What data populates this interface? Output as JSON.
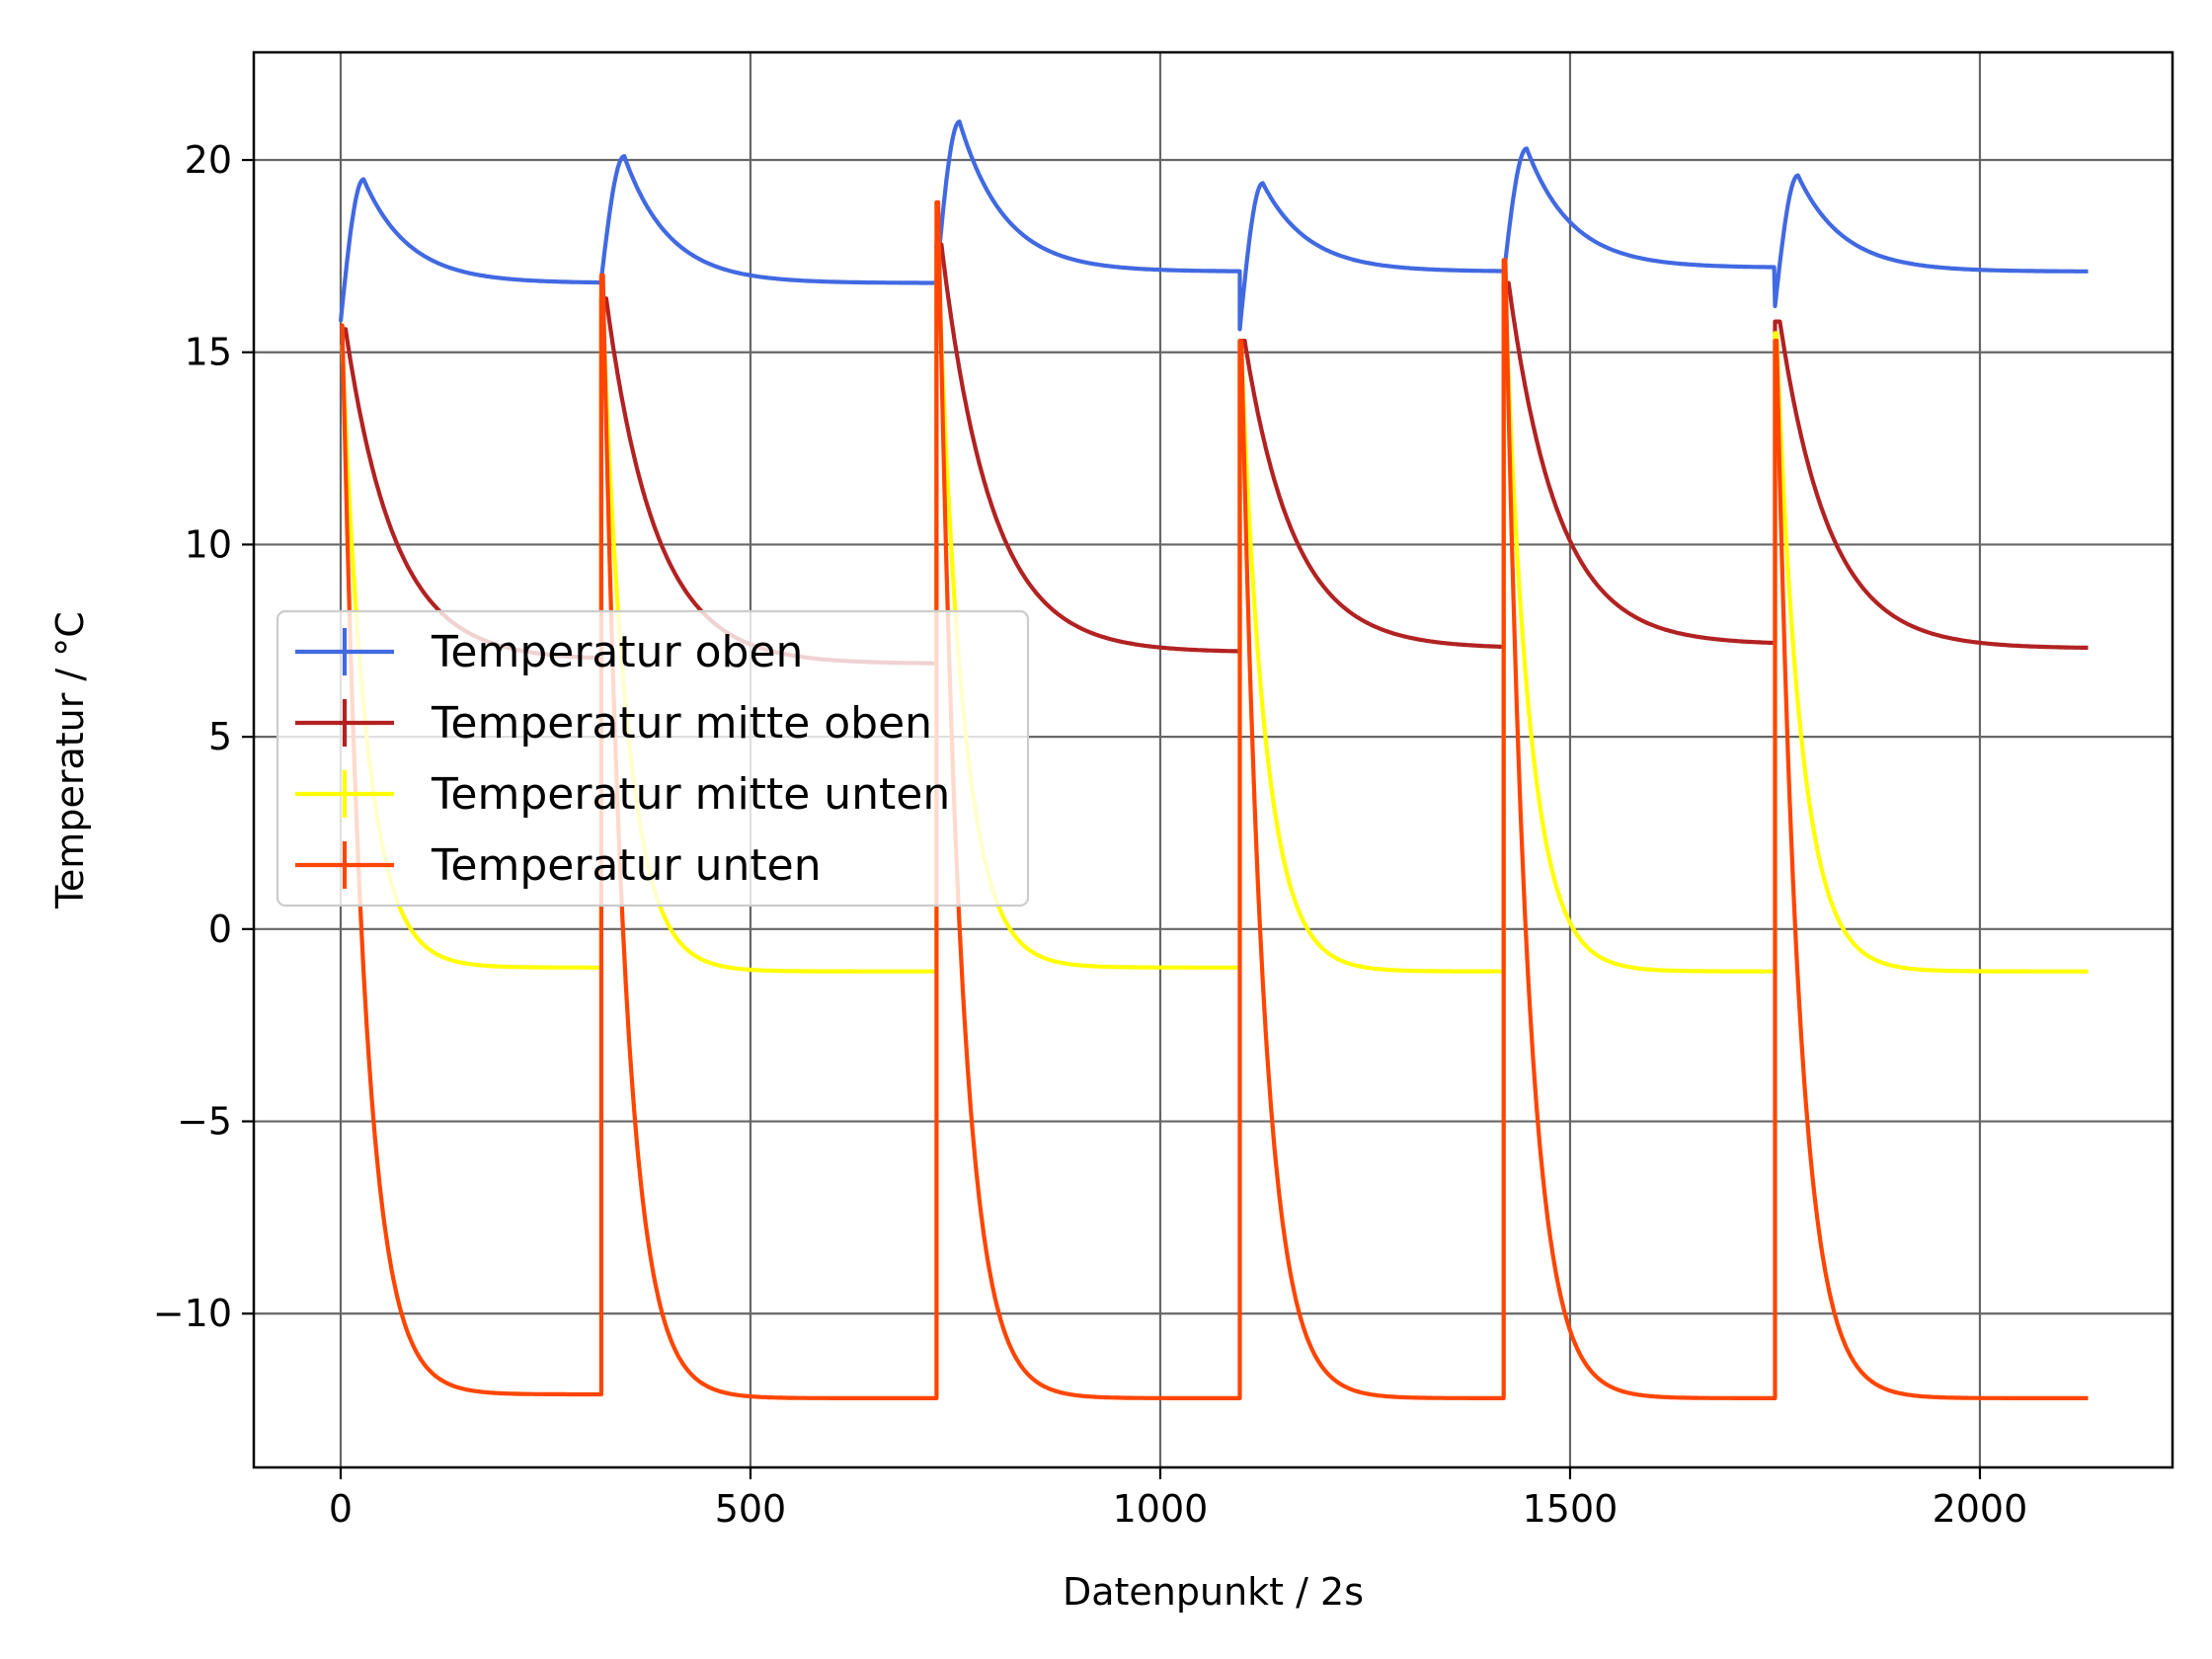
{
  "chart_data": {
    "type": "line",
    "xlabel": "Datenpunkt / 2s",
    "ylabel": "Temperatur / °C",
    "xlim": [
      -106,
      2235
    ],
    "ylim": [
      -14,
      22.8
    ],
    "xticks": [
      0,
      500,
      1000,
      1500,
      2000
    ],
    "xtick_labels": [
      "0",
      "500",
      "1000",
      "1500",
      "2000"
    ],
    "yticks": [
      -10,
      -5,
      0,
      5,
      10,
      15,
      20
    ],
    "ytick_labels": [
      "−10",
      "−5",
      "0",
      "5",
      "10",
      "15",
      "20"
    ],
    "grid": true,
    "legend_position": "center-left",
    "x_max": 2133,
    "segments": [
      0,
      318,
      727,
      1097,
      1419,
      1750
    ],
    "series": [
      {
        "name": "Temperatur oben",
        "color": "#4169e1",
        "cycles": [
          {
            "start": 15.8,
            "peak": 19.5,
            "peak_offset": 28,
            "end": 16.8
          },
          {
            "start": 16.9,
            "peak": 20.1,
            "peak_offset": 28,
            "end": 16.8
          },
          {
            "start": 16.9,
            "peak": 21.0,
            "peak_offset": 28,
            "end": 17.1
          },
          {
            "start": 15.6,
            "peak": 19.4,
            "peak_offset": 28,
            "end": 17.1
          },
          {
            "start": 17.0,
            "peak": 20.3,
            "peak_offset": 28,
            "end": 17.2
          },
          {
            "start": 16.2,
            "peak": 19.6,
            "peak_offset": 28,
            "end": 17.1
          }
        ]
      },
      {
        "name": "Temperatur mitte oben",
        "color": "#b22222",
        "cycles": [
          {
            "peak": 15.6,
            "end": 7.0
          },
          {
            "peak": 16.4,
            "end": 6.9
          },
          {
            "peak": 17.8,
            "end": 7.2
          },
          {
            "peak": 15.3,
            "end": 7.3
          },
          {
            "peak": 16.8,
            "end": 7.4
          },
          {
            "peak": 15.8,
            "end": 7.3
          }
        ]
      },
      {
        "name": "Temperatur mitte unten",
        "color": "#ffff00",
        "cycles": [
          {
            "peak": 15.2,
            "end": -1.0
          },
          {
            "peak": 16.2,
            "end": -1.1
          },
          {
            "peak": 17.6,
            "end": -1.0
          },
          {
            "peak": 15.1,
            "end": -1.1
          },
          {
            "peak": 16.5,
            "end": -1.1
          },
          {
            "peak": 15.5,
            "end": -1.1
          }
        ]
      },
      {
        "name": "Temperatur unten",
        "color": "#ff4500",
        "cycles": [
          {
            "peak": 15.7,
            "end": -12.1
          },
          {
            "peak": 17.0,
            "end": -12.2
          },
          {
            "peak": 18.9,
            "end": -12.2
          },
          {
            "peak": 15.3,
            "end": -12.2
          },
          {
            "peak": 17.4,
            "end": -12.2
          },
          {
            "peak": 15.3,
            "end": -12.2
          }
        ]
      }
    ]
  }
}
